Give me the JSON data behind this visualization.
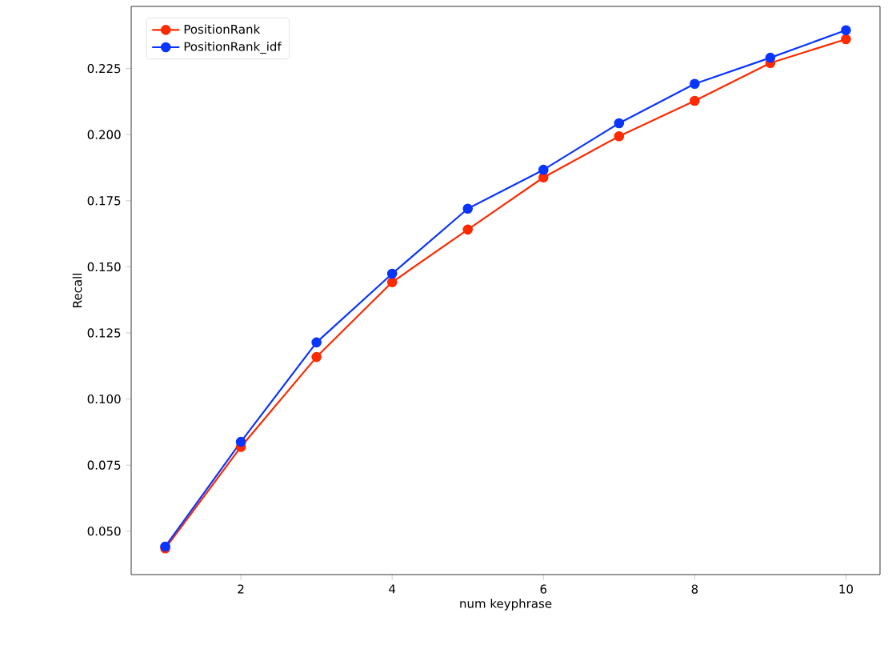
{
  "chart_data": {
    "type": "line",
    "xlabel": "num keyphrase",
    "ylabel": "Recall",
    "x": [
      1,
      2,
      3,
      4,
      5,
      6,
      7,
      8,
      9,
      10
    ],
    "series": [
      {
        "name": "PositionRank",
        "color": "#ff2a00",
        "values": [
          0.0435,
          0.0819,
          0.1159,
          0.1442,
          0.1641,
          0.1838,
          0.1994,
          0.2128,
          0.2271,
          0.2361
        ]
      },
      {
        "name": "PositionRank_idf",
        "color": "#0a35ff",
        "values": [
          0.0442,
          0.0838,
          0.1214,
          0.1474,
          0.172,
          0.1867,
          0.2043,
          0.2192,
          0.2291,
          0.2395
        ]
      }
    ],
    "xlim": [
      0.55,
      10.45
    ],
    "ylim": [
      0.0336,
      0.2485
    ],
    "xticks": [
      2,
      4,
      6,
      8,
      10
    ],
    "yticks": [
      {
        "value": 0.05,
        "label": "0.050"
      },
      {
        "value": 0.075,
        "label": "0.075"
      },
      {
        "value": 0.1,
        "label": "0.100"
      },
      {
        "value": 0.125,
        "label": "0.125"
      },
      {
        "value": 0.15,
        "label": "0.150"
      },
      {
        "value": 0.175,
        "label": "0.175"
      },
      {
        "value": 0.2,
        "label": "0.200"
      },
      {
        "value": 0.225,
        "label": "0.225"
      }
    ],
    "legend": "top left",
    "marker": "circle",
    "line_style": "solid",
    "grid": false
  }
}
